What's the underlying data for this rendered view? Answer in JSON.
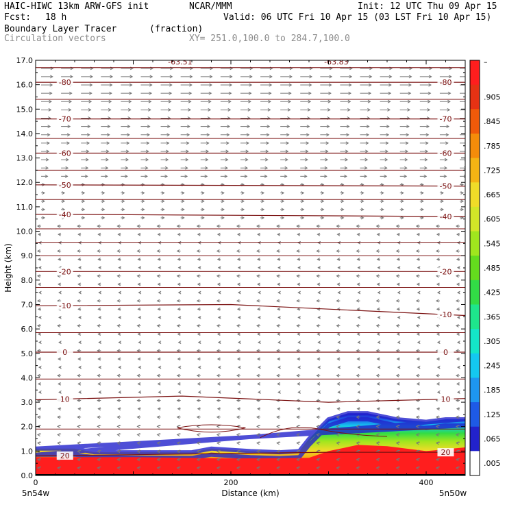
{
  "header": {
    "model": "HAIC-HIWC 13km ARW-GFS init",
    "org": "NCAR/MMM",
    "init": "Init: 12 UTC Thu 09 Apr 15",
    "fcst_label": "Fcst:",
    "fcst_value": "18 h",
    "valid": "Valid: 06 UTC Fri 10 Apr 15 (03 LST Fri 10 Apr 15)",
    "field": "Boundary Layer Tracer",
    "units": "(fraction)",
    "vectors": "Circulation vectors",
    "xy": "XY= 251.0,100.0 to 284.7,100.0"
  },
  "chart_data": {
    "type": "heatmap",
    "ylabel": "Height (km)",
    "xlabel": "Distance (km)",
    "xlim": [
      0,
      440
    ],
    "ylim": [
      0,
      17
    ],
    "y_ticks": [
      "0.0",
      "1.0",
      "2.0",
      "3.0",
      "4.0",
      "5.0",
      "6.0",
      "7.0",
      "8.0",
      "9.0",
      "10.0",
      "11.0",
      "12.0",
      "13.0",
      "14.0",
      "15.0",
      "16.0",
      "17.0"
    ],
    "x_ticks": [
      {
        "value": 0,
        "label": "0"
      },
      {
        "value": 200,
        "label": "200"
      },
      {
        "value": 400,
        "label": "400"
      }
    ],
    "x_endpoints": {
      "left": "5n54w",
      "right": "5n50w"
    },
    "colorbar": {
      "labels": [
        ".005",
        ".065",
        ".125",
        ".185",
        ".245",
        ".305",
        ".365",
        ".425",
        ".485",
        ".545",
        ".605",
        ".665",
        ".725",
        ".785",
        ".845",
        ".905"
      ],
      "top_label": "–",
      "colors": [
        "#ffffff",
        "#2222cc",
        "#1e5ae6",
        "#1e96f0",
        "#14c8f0",
        "#14e6c8",
        "#1ee68c",
        "#32dc46",
        "#64dc1e",
        "#a0e61e",
        "#d2e628",
        "#f0dc28",
        "#f5b414",
        "#f58c0a",
        "#f05a0a",
        "#e63214",
        "#ff1e1e"
      ]
    },
    "contours": {
      "label_text": [
        "20",
        "10",
        "0",
        "-10",
        "-20",
        "-40",
        "-50",
        "-60",
        "-70",
        "-80",
        "-63.51",
        "-63.83"
      ],
      "lines": [
        {
          "label": "20",
          "points": [
            [
              0,
              0.8
            ],
            [
              100,
              0.85
            ],
            [
              200,
              0.9
            ],
            [
              300,
              0.95
            ],
            [
              440,
              0.95
            ]
          ]
        },
        {
          "label": "10",
          "points": [
            [
              0,
              3.1
            ],
            [
              150,
              3.25
            ],
            [
              300,
              3.0
            ],
            [
              440,
              3.15
            ]
          ]
        },
        {
          "label": "0",
          "points": [
            [
              0,
              5.05
            ],
            [
              440,
              5.05
            ]
          ]
        },
        {
          "label": "-10",
          "points": [
            [
              0,
              6.95
            ],
            [
              200,
              7.0
            ],
            [
              440,
              6.55
            ]
          ]
        },
        {
          "label": "-20",
          "points": [
            [
              0,
              8.35
            ],
            [
              440,
              8.35
            ]
          ]
        },
        {
          "label": "-40",
          "points": [
            [
              0,
              10.7
            ],
            [
              440,
              10.6
            ]
          ]
        },
        {
          "label": "-50",
          "points": [
            [
              0,
              11.9
            ],
            [
              440,
              11.85
            ]
          ]
        },
        {
          "label": "-60",
          "points": [
            [
              0,
              13.2
            ],
            [
              440,
              13.2
            ]
          ]
        },
        {
          "label": "-70",
          "points": [
            [
              0,
              14.6
            ],
            [
              440,
              14.6
            ]
          ]
        },
        {
          "label": "-80",
          "points": [
            [
              0,
              16.1
            ],
            [
              440,
              16.1
            ]
          ]
        }
      ]
    },
    "tracer_field": {
      "red_top_km": [
        [
          0,
          0.75
        ],
        [
          100,
          0.75
        ],
        [
          200,
          0.7
        ],
        [
          280,
          0.72
        ],
        [
          300,
          1.0
        ],
        [
          330,
          1.25
        ],
        [
          360,
          1.2
        ],
        [
          400,
          1.0
        ],
        [
          440,
          1.15
        ]
      ],
      "blue_top_km": [
        [
          0,
          1.1
        ],
        [
          40,
          1.1
        ],
        [
          60,
          0.95
        ],
        [
          160,
          0.95
        ],
        [
          180,
          1.1
        ],
        [
          220,
          1.0
        ],
        [
          250,
          0.95
        ],
        [
          270,
          1.0
        ],
        [
          280,
          1.5
        ],
        [
          300,
          2.3
        ],
        [
          320,
          2.55
        ],
        [
          340,
          2.55
        ],
        [
          370,
          2.3
        ],
        [
          400,
          2.2
        ],
        [
          420,
          2.3
        ],
        [
          440,
          2.3
        ]
      ]
    }
  }
}
